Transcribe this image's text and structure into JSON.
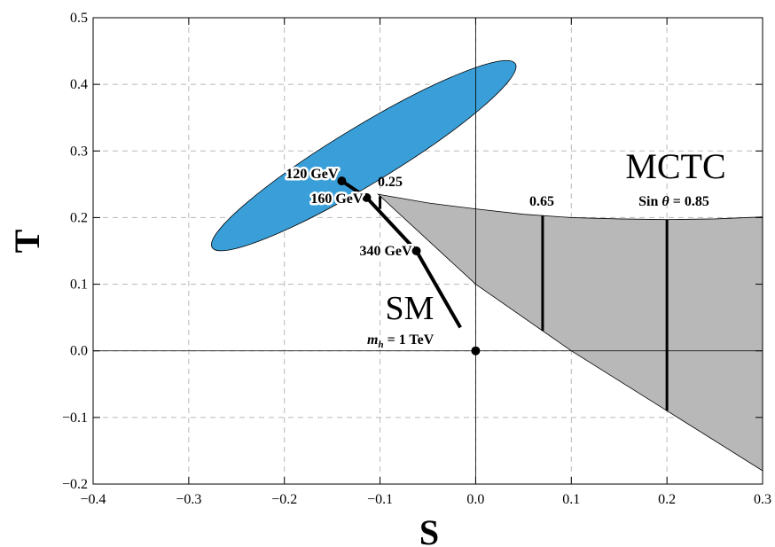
{
  "chart_data": {
    "type": "scatter",
    "xlabel": "S",
    "ylabel": "T",
    "xlim": [
      -0.4,
      0.3
    ],
    "ylim": [
      -0.2,
      0.5
    ],
    "grid": true,
    "x_ticks": [
      -0.4,
      -0.3,
      -0.2,
      -0.1,
      0.0,
      0.1,
      0.2,
      0.3
    ],
    "x_tick_labels": [
      "−0.4",
      "−0.3",
      "−0.2",
      "−0.1",
      "0.0",
      "0.1",
      "0.2",
      "0.3"
    ],
    "y_ticks": [
      -0.2,
      -0.1,
      0.0,
      0.1,
      0.2,
      0.3,
      0.4,
      0.5
    ],
    "y_tick_labels": [
      "−0.2",
      "−0.1",
      "0.0",
      "0.1",
      "0.2",
      "0.3",
      "0.4",
      "0.5"
    ],
    "colors": {
      "ellipse": "#3a9fd8",
      "region": "#b8b8b8",
      "line": "#000000"
    },
    "ellipse": {
      "center": [
        -0.117,
        0.293
      ],
      "endpoints": [
        [
          -0.275,
          0.155
        ],
        [
          0.042,
          0.431
        ]
      ],
      "semi_minor": 0.043
    },
    "sm_curve": {
      "points": [
        [
          -0.14,
          0.255
        ],
        [
          -0.114,
          0.23
        ],
        [
          -0.062,
          0.15
        ],
        [
          -0.016,
          0.035
        ]
      ],
      "markers": [
        {
          "x": -0.14,
          "y": 0.255,
          "label": "120 GeV"
        },
        {
          "x": -0.114,
          "y": 0.23,
          "label": "160 GeV"
        },
        {
          "x": -0.062,
          "y": 0.15,
          "label": "340 GeV"
        },
        {
          "x": 0.0,
          "y": 0.0,
          "label": ""
        }
      ],
      "label": "SM",
      "end_label_var": "m",
      "end_label_sub": "h",
      "end_label_rest": " = 1 TeV"
    },
    "mctc_region": {
      "label": "MCTC",
      "upper": [
        [
          -0.102,
          0.235
        ],
        [
          -0.05,
          0.222
        ],
        [
          0.0,
          0.213
        ],
        [
          0.05,
          0.205
        ],
        [
          0.1,
          0.2
        ],
        [
          0.15,
          0.198
        ],
        [
          0.2,
          0.197
        ],
        [
          0.25,
          0.198
        ],
        [
          0.3,
          0.201
        ]
      ],
      "lower": [
        [
          0.3,
          -0.18
        ],
        [
          0.2,
          -0.09
        ],
        [
          0.1,
          0.0
        ],
        [
          0.0,
          0.1
        ],
        [
          -0.102,
          0.235
        ]
      ],
      "lines": [
        {
          "x": -0.1,
          "y0": 0.232,
          "y1": 0.213,
          "label": "0.25"
        },
        {
          "x": 0.07,
          "y0": 0.203,
          "y1": 0.03,
          "label": "0.65"
        },
        {
          "x": 0.2,
          "y0": 0.197,
          "y1": -0.09,
          "label_prefix": "Sin ",
          "label_var": "θ",
          "label_suffix": " = 0.85"
        }
      ]
    }
  }
}
